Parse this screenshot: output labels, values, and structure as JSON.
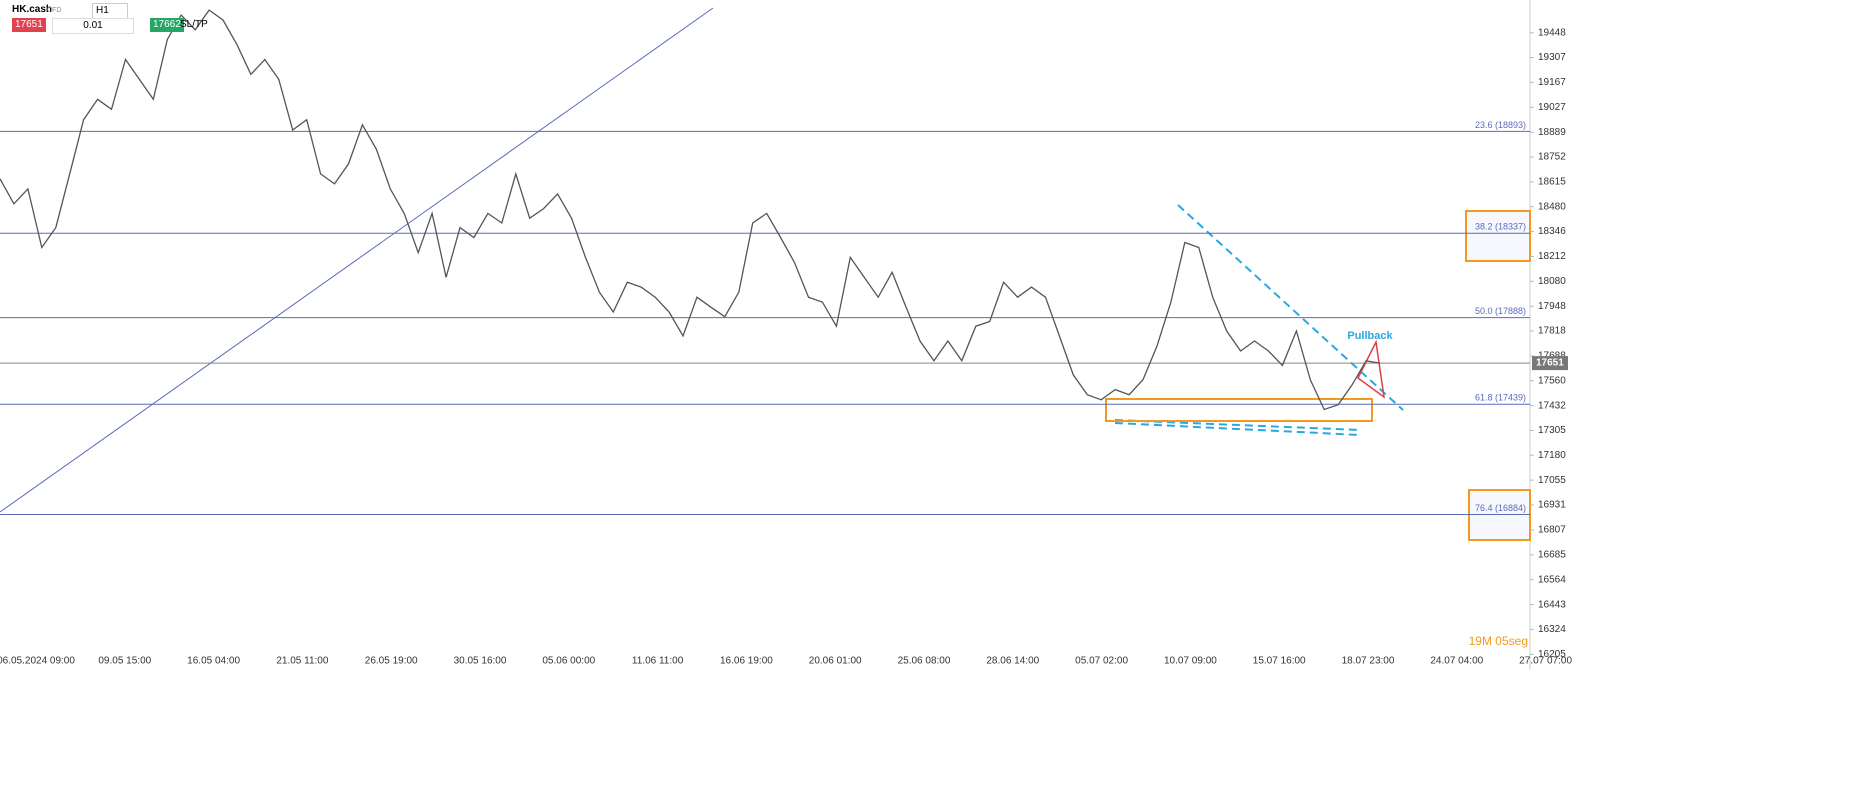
{
  "toolbar": {
    "symbol": "HK.cash",
    "instrument": "CFD",
    "timeframe": "H1",
    "bid": "17651",
    "volume": "0.01",
    "ask": "17662",
    "sltp": "SL/TP"
  },
  "chart_data": {
    "type": "line",
    "color": "#555555",
    "log_scale": true,
    "values": [
      18632,
      18496,
      18577,
      18260,
      18367,
      18659,
      18958,
      19072,
      19016,
      19296,
      19184,
      19072,
      19409,
      19549,
      19465,
      19578,
      19521,
      19380,
      19212,
      19296,
      19184,
      18901,
      18958,
      18659,
      18604,
      18714,
      18930,
      18794,
      18577,
      18444,
      18233,
      18444,
      18101,
      18367,
      18314,
      18444,
      18392,
      18659,
      18418,
      18470,
      18550,
      18418,
      18207,
      18022,
      17918,
      18075,
      18049,
      17996,
      17918,
      17792,
      17996,
      17943,
      17893,
      18022,
      18392,
      18444,
      18314,
      18180,
      17996,
      17970,
      17843,
      18207,
      18101,
      17996,
      18128,
      17943,
      17766,
      17663,
      17766,
      17663,
      17843,
      17868,
      18075,
      17996,
      18049,
      17996,
      17792,
      17590,
      17488,
      17462,
      17514,
      17488,
      17565,
      17740,
      17970,
      18287,
      18260,
      17996,
      17818,
      17714,
      17766,
      17714,
      17639,
      17818,
      17565,
      17412,
      17437,
      17539,
      17663,
      17651
    ],
    "xtick_labels": [
      "06.05.2024 09:00",
      "09.05 15:00",
      "16.05 04:00",
      "21.05 11:00",
      "26.05 19:00",
      "30.05 16:00",
      "05.06 00:00",
      "11.06 11:00",
      "16.06 19:00",
      "20.06 01:00",
      "25.06 08:00",
      "28.06 14:00",
      "05.07 02:00",
      "10.07 09:00",
      "15.07 16:00",
      "18.07 23:00",
      "24.07 04:00",
      "27.07 07:00"
    ],
    "ylim": [
      16140,
      19590
    ],
    "yticks": [
      19448,
      19307,
      19167,
      19027,
      18889,
      18752,
      18615,
      18480,
      18346,
      18212,
      18080,
      17948,
      17818,
      17688,
      17560,
      17432,
      17305,
      17180,
      17055,
      16931,
      16807,
      16685,
      16564,
      16443,
      16324,
      16205
    ],
    "last_price": 17651,
    "levels": [
      {
        "label": "23.6 (18893)",
        "value": 18893
      },
      {
        "label": "38.2 (18337)",
        "value": 18337
      },
      {
        "label": "50.0 (17888)",
        "value": 17888
      },
      {
        "label": "61.8 (17439)",
        "value": 17439
      },
      {
        "label": "76.4 (16884)",
        "value": 16884
      }
    ],
    "annotation": "Pullback",
    "timer": "19M 05seg"
  }
}
